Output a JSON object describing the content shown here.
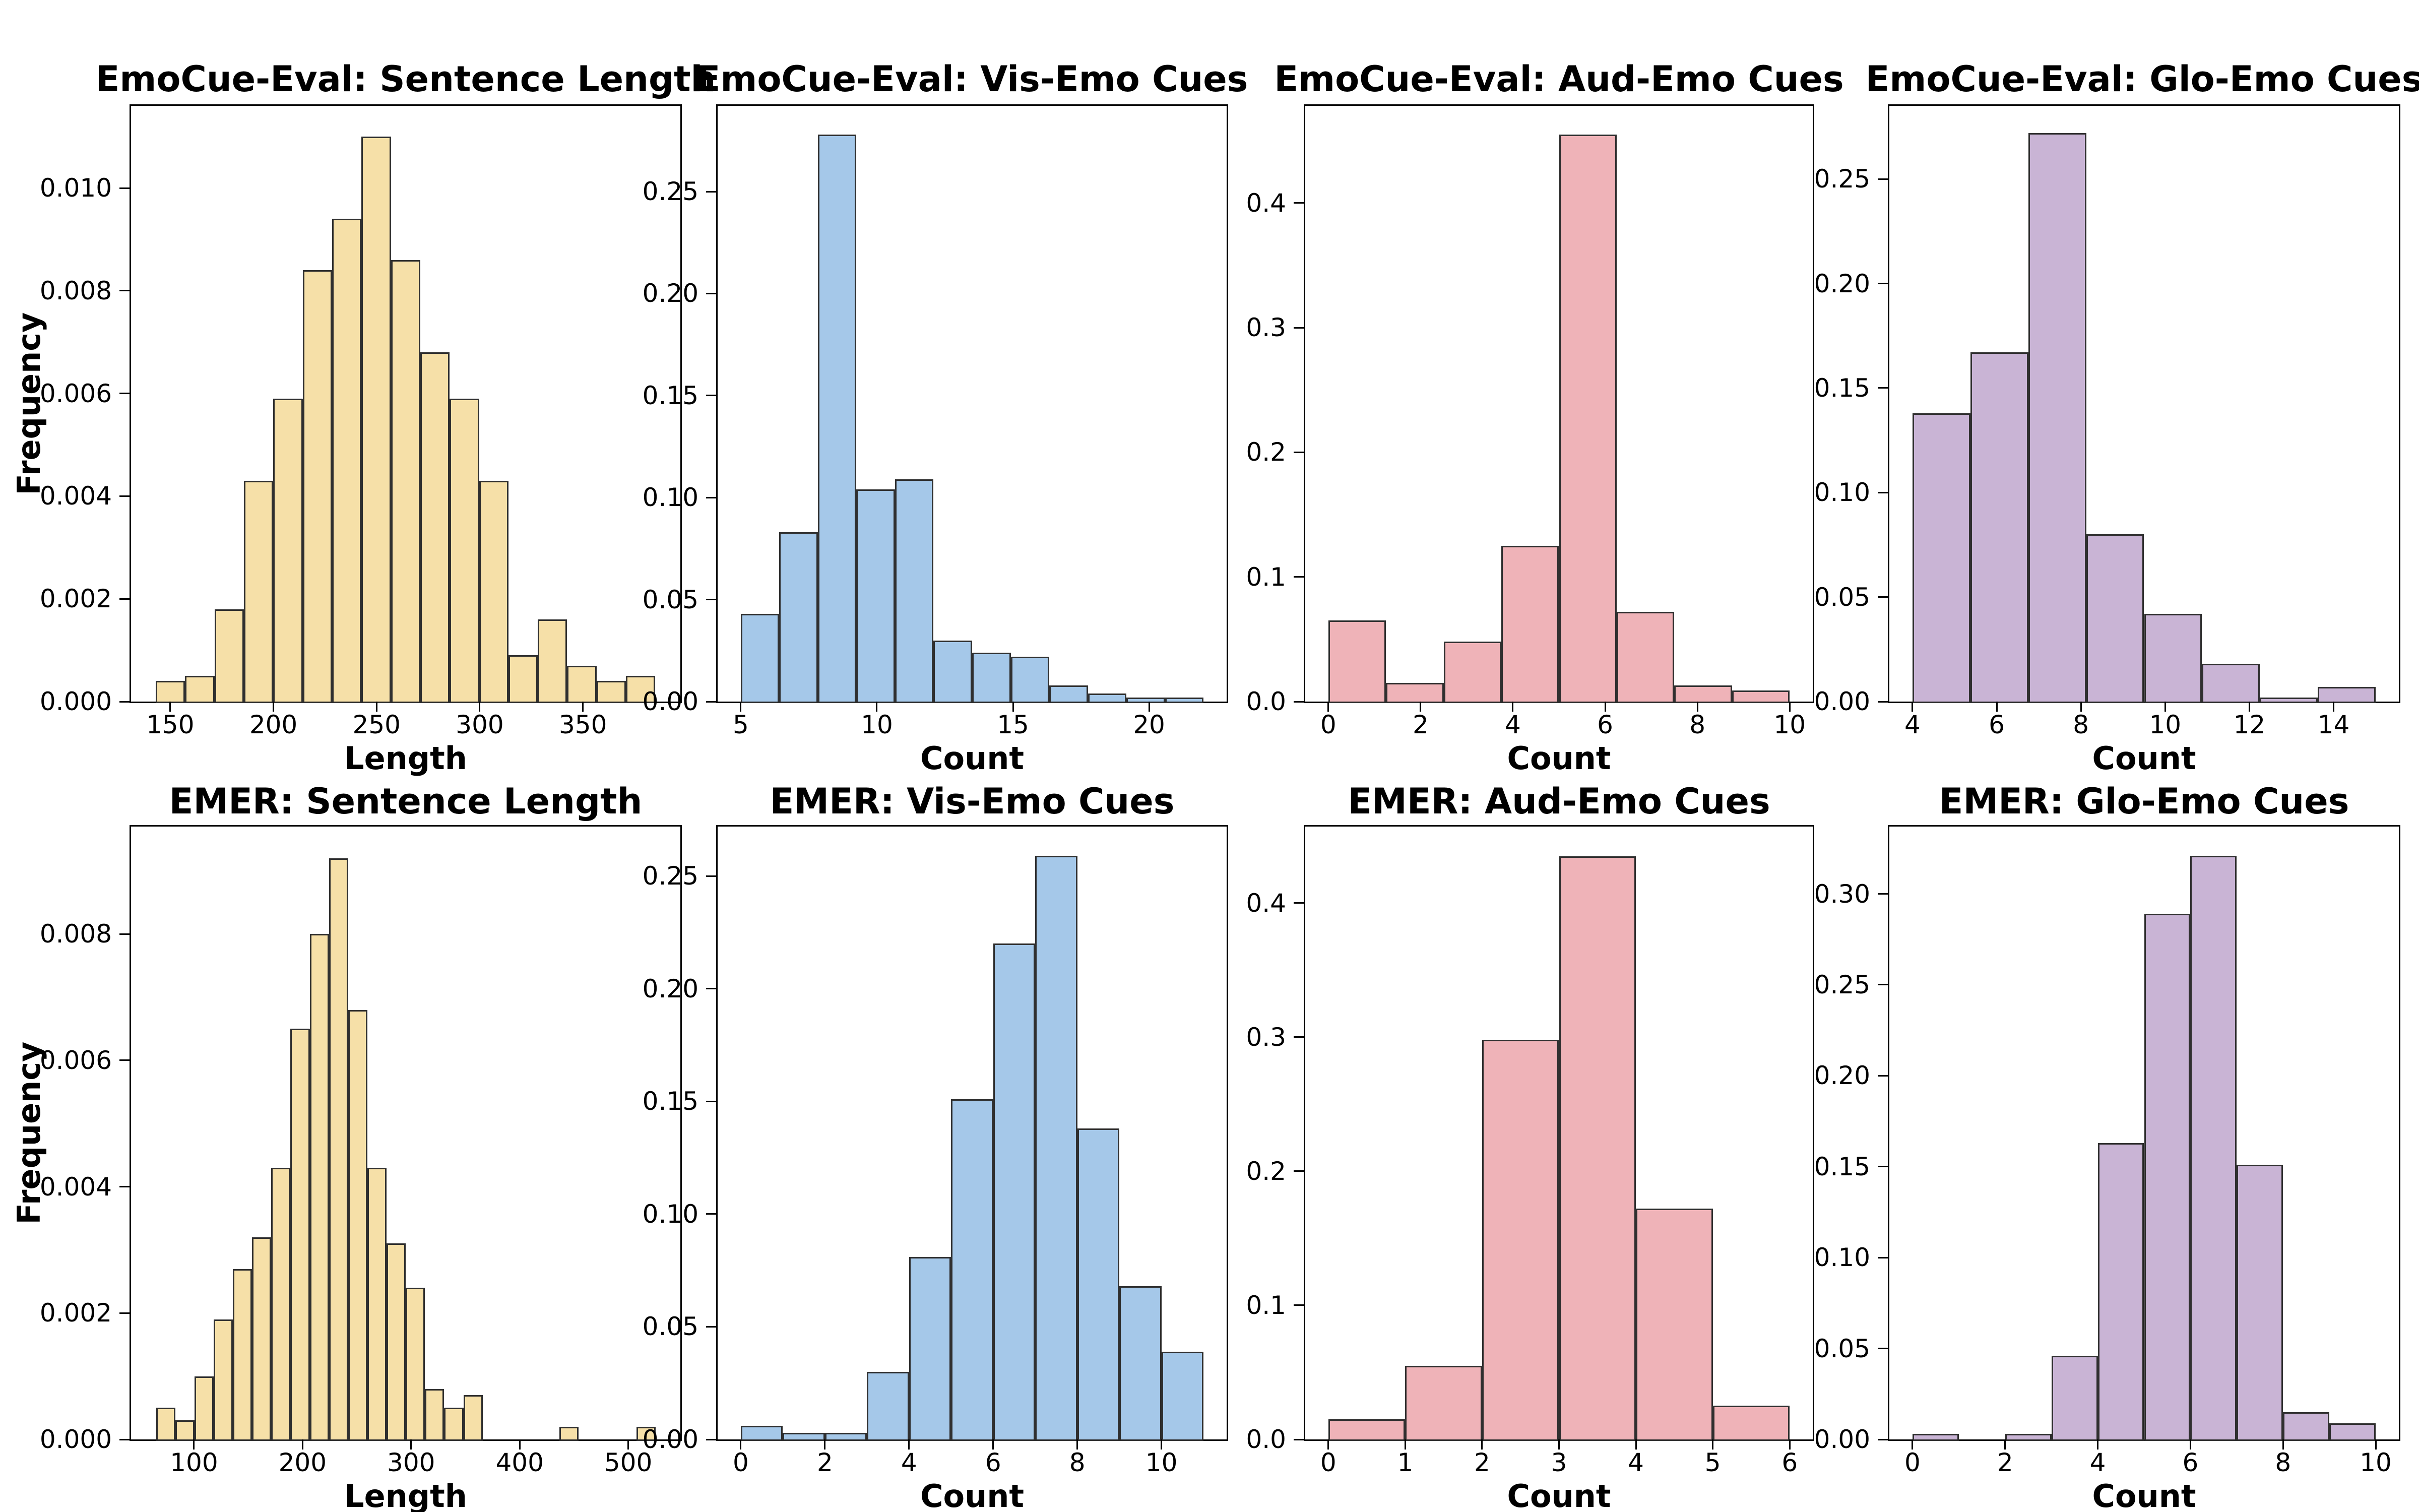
{
  "figure": {
    "background": "#ffffff",
    "bar_edge_color": "#2f2f2f",
    "series_colors": {
      "sentence_length": "#f6e0a8",
      "vis_emo": "#a5c8e9",
      "aud_emo": "#efb3b8",
      "glo_emo": "#c9b4d5"
    }
  },
  "chart_data": [
    {
      "type": "bar",
      "title": "EmoCue-Eval: Sentence Length",
      "xlabel": "Length",
      "ylabel": "Frequency",
      "color": "#f6e0a8",
      "bin_start": 143,
      "bin_width": 14.24,
      "values": [
        0.0004,
        0.0005,
        0.0018,
        0.0043,
        0.0059,
        0.0084,
        0.0094,
        0.011,
        0.0086,
        0.0068,
        0.0059,
        0.0043,
        0.0009,
        0.0016,
        0.0007,
        0.0004,
        0.0005
      ],
      "xlim": [
        131,
        397.2
      ],
      "ylim": [
        0,
        0.0116
      ],
      "xticks": [
        150,
        200,
        250,
        300,
        350
      ],
      "ytick_values": [
        0,
        0.002,
        0.004,
        0.006,
        0.008,
        0.01
      ],
      "ytick_labels": [
        "0.000",
        "0.002",
        "0.004",
        "0.006",
        "0.008",
        "0.010"
      ],
      "grid": false,
      "legend": "none"
    },
    {
      "type": "bar",
      "title": "EmoCue-Eval: Vis-Emo Cues",
      "xlabel": "Count",
      "color": "#a5c8e9",
      "bin_start": 5,
      "bin_width": 1.4167,
      "values": [
        0.043,
        0.083,
        0.278,
        0.104,
        0.109,
        0.03,
        0.024,
        0.022,
        0.008,
        0.004,
        0.002,
        0.002
      ],
      "xlim": [
        4.15,
        22.85
      ],
      "ylim": [
        0,
        0.292
      ],
      "xticks": [
        5,
        10,
        15,
        20
      ],
      "ytick_values": [
        0,
        0.05,
        0.1,
        0.15,
        0.2,
        0.25
      ],
      "ytick_labels": [
        "0.00",
        "0.05",
        "0.10",
        "0.15",
        "0.20",
        "0.25"
      ],
      "grid": false,
      "legend": "none"
    },
    {
      "type": "bar",
      "title": "EmoCue-Eval: Aud-Emo Cues",
      "xlabel": "Count",
      "color": "#efb3b8",
      "bin_start": 0,
      "bin_width": 1.25,
      "values": [
        0.065,
        0.015,
        0.048,
        0.125,
        0.455,
        0.072,
        0.013,
        0.009
      ],
      "xlim": [
        -0.5,
        10.5
      ],
      "ylim": [
        0,
        0.478
      ],
      "xticks": [
        0,
        2,
        4,
        6,
        8,
        10
      ],
      "ytick_values": [
        0,
        0.1,
        0.2,
        0.3,
        0.4
      ],
      "ytick_labels": [
        "0.0",
        "0.1",
        "0.2",
        "0.3",
        "0.4"
      ],
      "grid": false,
      "legend": "none"
    },
    {
      "type": "bar",
      "title": "EmoCue-Eval: Glo-Emo Cues",
      "xlabel": "Count",
      "color": "#c9b4d5",
      "bin_start": 4,
      "bin_width": 1.375,
      "values": [
        0.138,
        0.167,
        0.272,
        0.08,
        0.042,
        0.018,
        0.002,
        0.007
      ],
      "xlim": [
        3.45,
        15.55
      ],
      "ylim": [
        0,
        0.285
      ],
      "xticks": [
        4,
        6,
        8,
        10,
        12,
        14
      ],
      "ytick_values": [
        0,
        0.05,
        0.1,
        0.15,
        0.2,
        0.25
      ],
      "ytick_labels": [
        "0.00",
        "0.05",
        "0.10",
        "0.15",
        "0.20",
        "0.25"
      ],
      "grid": false,
      "legend": "none"
    },
    {
      "type": "bar",
      "title": "EMER: Sentence Length",
      "xlabel": "Length",
      "ylabel": "Frequency",
      "color": "#f6e0a8",
      "bin_start": 65,
      "bin_width": 17.7,
      "values": [
        0.0005,
        0.0003,
        0.001,
        0.0019,
        0.0027,
        0.0032,
        0.0043,
        0.0065,
        0.008,
        0.0092,
        0.0068,
        0.0043,
        0.0031,
        0.0024,
        0.0008,
        0.0005,
        0.0007,
        0,
        0,
        0,
        0,
        0.0002,
        0,
        0,
        0,
        0.0002
      ],
      "xlim": [
        42,
        548
      ],
      "ylim": [
        0,
        0.0097
      ],
      "xticks": [
        100,
        200,
        300,
        400,
        500
      ],
      "ytick_values": [
        0,
        0.002,
        0.004,
        0.006,
        0.008
      ],
      "ytick_labels": [
        "0.000",
        "0.002",
        "0.004",
        "0.006",
        "0.008"
      ],
      "grid": false,
      "legend": "none"
    },
    {
      "type": "bar",
      "title": "EMER: Vis-Emo Cues",
      "xlabel": "Count",
      "color": "#a5c8e9",
      "bin_start": 0,
      "bin_width": 1,
      "values": [
        0.006,
        0.003,
        0.003,
        0.03,
        0.081,
        0.151,
        0.22,
        0.259,
        0.138,
        0.068,
        0.039
      ],
      "xlim": [
        -0.55,
        11.55
      ],
      "ylim": [
        0,
        0.272
      ],
      "xticks": [
        0,
        2,
        4,
        6,
        8,
        10
      ],
      "ytick_values": [
        0,
        0.05,
        0.1,
        0.15,
        0.2,
        0.25
      ],
      "ytick_labels": [
        "0.00",
        "0.05",
        "0.10",
        "0.15",
        "0.20",
        "0.25"
      ],
      "grid": false,
      "legend": "none"
    },
    {
      "type": "bar",
      "title": "EMER: Aud-Emo Cues",
      "xlabel": "Count",
      "color": "#efb3b8",
      "bin_start": 0,
      "bin_width": 1,
      "values": [
        0.015,
        0.055,
        0.298,
        0.435,
        0.172,
        0.025
      ],
      "xlim": [
        -0.3,
        6.3
      ],
      "ylim": [
        0,
        0.457
      ],
      "xticks": [
        0,
        1,
        2,
        3,
        4,
        5,
        6
      ],
      "ytick_values": [
        0,
        0.1,
        0.2,
        0.3,
        0.4
      ],
      "ytick_labels": [
        "0.0",
        "0.1",
        "0.2",
        "0.3",
        "0.4"
      ],
      "grid": false,
      "legend": "none"
    },
    {
      "type": "bar",
      "title": "EMER: Glo-Emo Cues",
      "xlabel": "Count",
      "color": "#c9b4d5",
      "bin_start": 0,
      "bin_width": 1,
      "values": [
        0.003,
        0,
        0.003,
        0.046,
        0.163,
        0.289,
        0.321,
        0.151,
        0.015,
        0.009
      ],
      "xlim": [
        -0.5,
        10.5
      ],
      "ylim": [
        0,
        0.337
      ],
      "xticks": [
        0,
        2,
        4,
        6,
        8,
        10
      ],
      "ytick_values": [
        0,
        0.05,
        0.1,
        0.15,
        0.2,
        0.25,
        0.3
      ],
      "ytick_labels": [
        "0.00",
        "0.05",
        "0.10",
        "0.15",
        "0.20",
        "0.25",
        "0.30"
      ],
      "grid": false,
      "legend": "none"
    }
  ]
}
